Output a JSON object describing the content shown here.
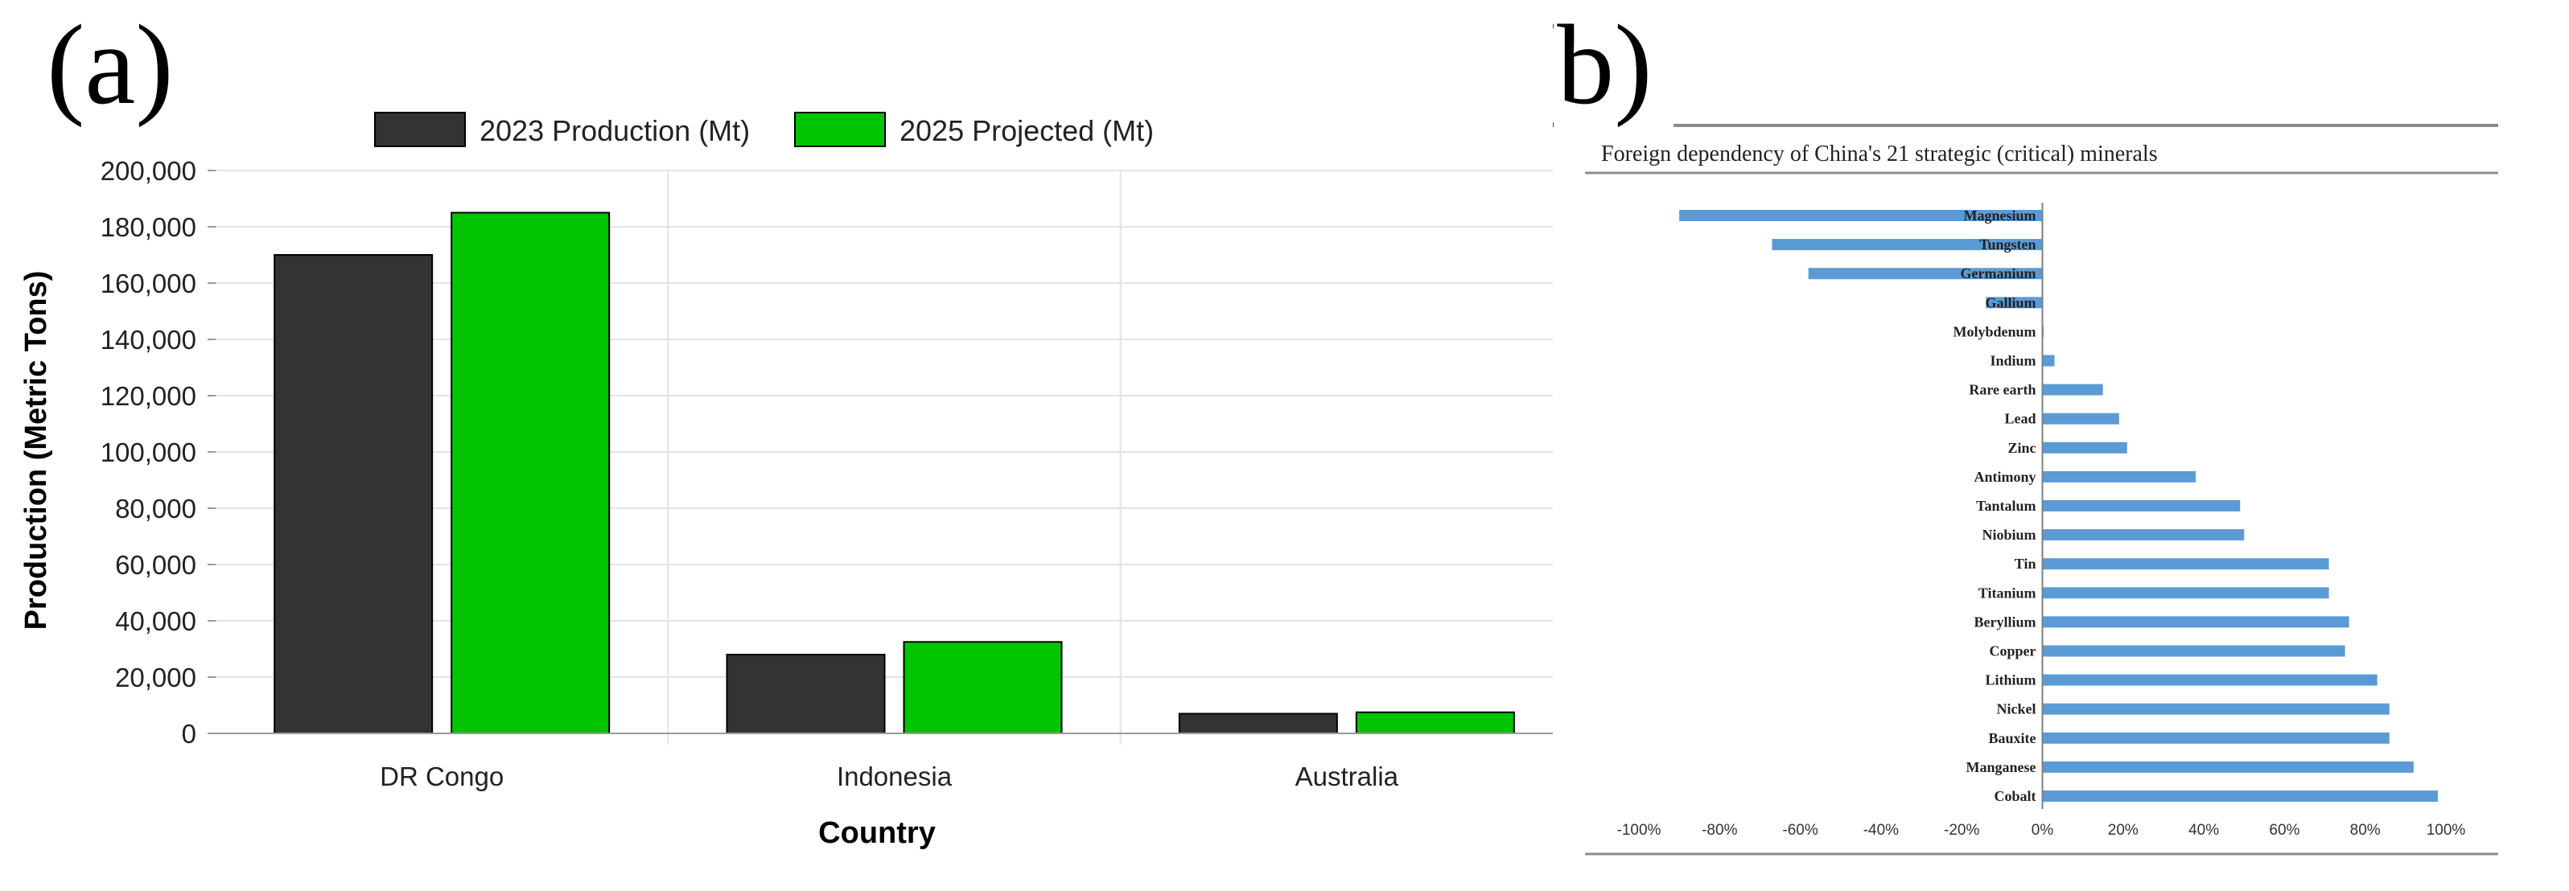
{
  "panels": {
    "a_label": "(a)",
    "b_label": "(b)"
  },
  "colors": {
    "production": "#333333",
    "projected": "#00c400",
    "bar_b": "#5b9bd5",
    "grid": "#e3e3e3",
    "axis": "#9a9a9a"
  },
  "chart_data": [
    {
      "type": "bar",
      "title": "",
      "categories": [
        "DR Congo",
        "Indonesia",
        "Australia"
      ],
      "series": [
        {
          "name": "2023 Production (Mt)",
          "values": [
            170000,
            28000,
            7000
          ]
        },
        {
          "name": "2025 Projected (Mt)",
          "values": [
            185000,
            32500,
            7500
          ]
        }
      ],
      "xlabel": "Country",
      "ylabel": "Production (Metric Tons)",
      "ylim": [
        0,
        200000
      ],
      "yticks": [
        "0",
        "20,000",
        "40,000",
        "60,000",
        "80,000",
        "100,000",
        "120,000",
        "140,000",
        "160,000",
        "180,000",
        "200,000"
      ],
      "grid": true,
      "legend": "top"
    },
    {
      "type": "bar",
      "orientation": "horizontal",
      "title": "Foreign dependency  of China's 21 strategic (critical) minerals",
      "categories": [
        "Magnesium",
        "Tungsten",
        "Germanium",
        "Gallium",
        "Molybdenum",
        "Indium",
        "Rare earth",
        "Lead",
        "Zinc",
        "Antimony",
        "Tantalum",
        "Niobium",
        "Tin",
        "Titanium",
        "Beryllium",
        "Copper",
        "Lithium",
        "Nickel",
        "Bauxite",
        "Manganese",
        "Cobalt"
      ],
      "values": [
        -90,
        -67,
        -58,
        -14,
        0,
        3,
        15,
        19,
        21,
        38,
        49,
        50,
        71,
        71,
        76,
        75,
        83,
        86,
        86,
        92,
        98
      ],
      "xlim": [
        -100,
        100
      ],
      "xticks": [
        "-100%",
        "-80%",
        "-60%",
        "-40%",
        "-20%",
        "0%",
        "20%",
        "40%",
        "60%",
        "80%",
        "100%"
      ],
      "grid": false,
      "legend": "none"
    }
  ]
}
